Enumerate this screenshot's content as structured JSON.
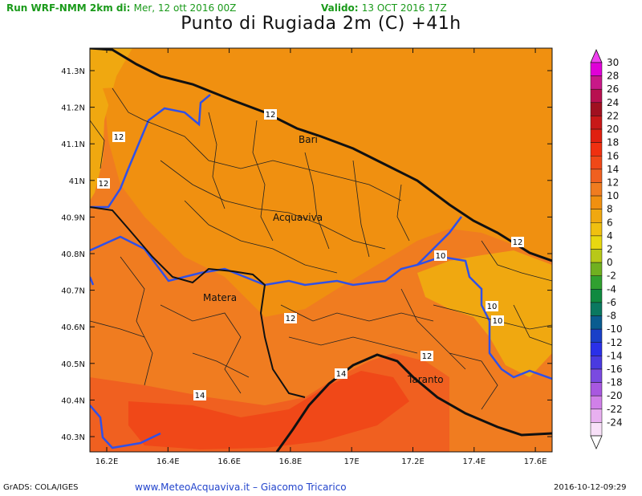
{
  "header": {
    "run_label": "Run WRF-NMM 2km di:",
    "run_value": "Mer, 12 ott 2016 00Z",
    "valid_label": "Valido:",
    "valid_value": "13 OCT 2016 17Z"
  },
  "title": "Punto di Rugiada 2m (C) +41h",
  "map": {
    "lat_ticks": [
      "41.3N",
      "41.2N",
      "41.1N",
      "41N",
      "40.9N",
      "40.8N",
      "40.7N",
      "40.6N",
      "40.5N",
      "40.4N",
      "40.3N"
    ],
    "lon_ticks": [
      "16.2E",
      "16.4E",
      "16.6E",
      "16.8E",
      "17E",
      "17.2E",
      "17.4E",
      "17.6E"
    ],
    "cities": [
      {
        "name": "Bari"
      },
      {
        "name": "Acquaviva"
      },
      {
        "name": "Matera"
      },
      {
        "name": "Taranto"
      }
    ],
    "contour_labels": [
      "12",
      "12",
      "12",
      "12",
      "12",
      "12",
      "12",
      "10",
      "10",
      "10",
      "14",
      "14"
    ]
  },
  "colorbar": {
    "levels": [
      "30",
      "28",
      "26",
      "24",
      "22",
      "20",
      "18",
      "16",
      "14",
      "12",
      "10",
      "8",
      "6",
      "4",
      "2",
      "0",
      "-2",
      "-4",
      "-6",
      "-8",
      "-10",
      "-12",
      "-14",
      "-16",
      "-18",
      "-20",
      "-22",
      "-24"
    ],
    "colors": [
      "#e000d8",
      "#c81888",
      "#b81050",
      "#a01020",
      "#c81818",
      "#e02010",
      "#f03010",
      "#f04818",
      "#f06020",
      "#f07c20",
      "#f09010",
      "#f0a810",
      "#f0c010",
      "#e8d810",
      "#b8c818",
      "#70b020",
      "#30a030",
      "#108a40",
      "#0a7860",
      "#0a5c90",
      "#1a40c8",
      "#2a30e8",
      "#4a3ae0",
      "#7a4ae0",
      "#a858e0",
      "#d080e8",
      "#e8b0f0",
      "#f8e0f8"
    ],
    "top_arrow_color": "#f040f0",
    "bottom_arrow_color": "#ffffff"
  },
  "footer": {
    "left": "GrADS: COLA/IGES",
    "site": "www.MeteoAcquaviva.it  –  Giacomo Tricarico",
    "timestamp": "2016-10-12-09:29"
  }
}
